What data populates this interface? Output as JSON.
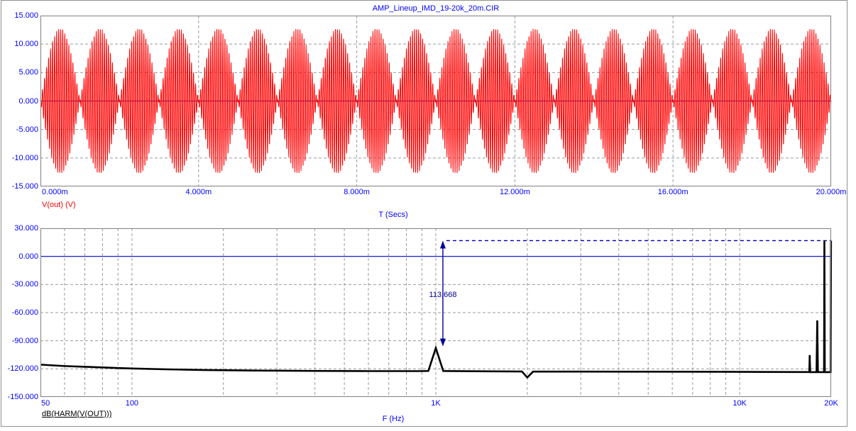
{
  "window": {
    "title_file": "AMP_Lineup_IMD_19-20k_20m.CIR"
  },
  "colors": {
    "label_blue": "#0000ff",
    "waveform_red": "#ff0000",
    "spectrum_black": "#000000",
    "grid_gray": "#9b9b9b",
    "border_gray": "#808080",
    "zero_line_blue": "#0000cc",
    "annotation_navy": "#000099",
    "background": "#ffffff"
  },
  "top_chart": {
    "title": "AMP_Lineup_IMD_19-20k_20m.CIR",
    "y_tick_labels": [
      "15.000",
      "10.000",
      "5.000",
      "0.000",
      "-5.000",
      "-10.000",
      "-15.000"
    ],
    "x_tick_labels": [
      "0.000m",
      "4.000m",
      "8.000m",
      "12.000m",
      "16.000m",
      "20.000m"
    ],
    "series_label": "V(out) (V)",
    "axis_label": "T (Secs)"
  },
  "bottom_chart": {
    "y_tick_labels": [
      "30.000",
      "0.000",
      "-30.000",
      "-60.000",
      "-90.000",
      "-120.000",
      "-150.000"
    ],
    "x_tick_labels": [
      "50",
      "100",
      "1K",
      "10K",
      "20K"
    ],
    "series_label": "dB(HARM(V(OUT)))",
    "axis_label": "F (Hz)",
    "annotation_value": "113.668"
  },
  "chart_data": [
    {
      "type": "line",
      "title": "AMP_Lineup_IMD_19-20k_20m.CIR",
      "xlabel": "T (Secs)",
      "ylabel": "V(out) (V)",
      "xlim_ms": [
        0,
        20
      ],
      "ylim": [
        -15,
        15
      ],
      "x_ticks_ms": [
        0,
        4,
        8,
        12,
        16,
        20
      ],
      "y_ticks": [
        15,
        10,
        5,
        0,
        -5,
        -10,
        -15
      ],
      "grid": "dashed major",
      "zero_line": 0,
      "color": "#ff0000",
      "signal": {
        "kind": "two-tone IMD beat waveform",
        "tone1_hz": 19000,
        "tone2_hz": 20000,
        "amplitude_per_tone": 6.4,
        "envelope_peak": 12.8,
        "beat_period_ms": 1,
        "envelope_nulls_at_ms": [
          0,
          1,
          2,
          3,
          4,
          5,
          6,
          7,
          8,
          9,
          10,
          11,
          12,
          13,
          14,
          15,
          16,
          17,
          18,
          19,
          20
        ]
      }
    },
    {
      "type": "line",
      "xlabel": "F (Hz)",
      "ylabel": "dB(HARM(V(OUT)))",
      "x_scale": "log",
      "xlim_hz": [
        50,
        20000
      ],
      "ylim_db": [
        -150,
        30
      ],
      "x_ticks_hz": [
        50,
        100,
        1000,
        10000,
        20000
      ],
      "y_ticks_db": [
        30,
        0,
        -30,
        -60,
        -90,
        -120,
        -150
      ],
      "grid": "dashed, log minor verticals",
      "zero_line_db": 0,
      "color": "#000000",
      "points_hz_db": [
        [
          50,
          -115.5
        ],
        [
          60,
          -117.0
        ],
        [
          70,
          -117.8
        ],
        [
          80,
          -118.5
        ],
        [
          90,
          -119.1
        ],
        [
          100,
          -119.6
        ],
        [
          130,
          -120.5
        ],
        [
          170,
          -121.2
        ],
        [
          250,
          -121.8
        ],
        [
          400,
          -122.2
        ],
        [
          600,
          -122.4
        ],
        [
          900,
          -122.4
        ],
        [
          945,
          -122.2
        ],
        [
          1000,
          -97.8
        ],
        [
          1058,
          -122.3
        ],
        [
          1500,
          -122.6
        ],
        [
          1920,
          -122.8
        ],
        [
          2000,
          -129.2
        ],
        [
          2090,
          -122.9
        ],
        [
          3000,
          -122.9
        ],
        [
          5000,
          -123.0
        ],
        [
          8000,
          -123.1
        ],
        [
          12000,
          -123.3
        ],
        [
          16000,
          -123.4
        ],
        [
          16950,
          -123.4
        ],
        [
          17000,
          -105.3
        ],
        [
          17060,
          -123.5
        ],
        [
          17900,
          -123.5
        ],
        [
          18000,
          -68.3
        ],
        [
          18090,
          -123.5
        ],
        [
          18950,
          -123.5
        ],
        [
          19000,
          16.8
        ],
        [
          19060,
          -123.5
        ],
        [
          19930,
          -123.5
        ],
        [
          19980,
          16.8
        ],
        [
          20000,
          16.8
        ]
      ],
      "annotation": {
        "text": "113.668",
        "x_hz": 1055,
        "arrow_top_db": 16.8,
        "arrow_bottom_db": -96,
        "dashed_line_to_hz": 19950
      }
    }
  ]
}
